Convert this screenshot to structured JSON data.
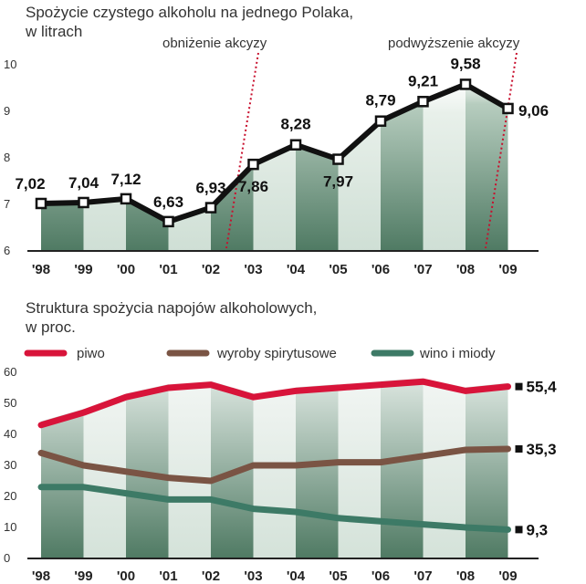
{
  "chart_data": [
    {
      "type": "line",
      "title": "Spożycie czystego alkoholu na jednego Polaka,",
      "subtitle": "w litrach",
      "categories": [
        "'98",
        "'99",
        "'00",
        "'01",
        "'02",
        "'03",
        "'04",
        "'05",
        "'06",
        "'07",
        "'08",
        "'09"
      ],
      "series": [
        {
          "name": "spożycie",
          "values": [
            7.02,
            7.04,
            7.12,
            6.63,
            6.93,
            7.86,
            8.28,
            7.97,
            8.79,
            9.21,
            9.58,
            9.06
          ],
          "labels": [
            "7,02",
            "7,04",
            "7,12",
            "6,63",
            "6,93",
            "7,86",
            "8,28",
            "7,97",
            "8,79",
            "9,21",
            "9,58",
            "9,06"
          ]
        }
      ],
      "yticks": [
        "6",
        "7",
        "8",
        "9",
        "10"
      ],
      "ylim": [
        6,
        10.4
      ],
      "annotations": [
        {
          "label": "obniżenie akcyzy",
          "between": [
            "'02",
            "'03"
          ]
        },
        {
          "label": "podwyższenie akcyzy",
          "between": [
            "'08",
            "'09"
          ]
        }
      ],
      "xlabel": "",
      "ylabel": ""
    },
    {
      "type": "line",
      "title": "Struktura spożycia napojów alkoholowych,",
      "subtitle": "w proc.",
      "categories": [
        "'98",
        "'99",
        "'00",
        "'01",
        "'02",
        "'03",
        "'04",
        "'05",
        "'06",
        "'07",
        "'08",
        "'09"
      ],
      "series": [
        {
          "name": "piwo",
          "color": "#d8143a",
          "values": [
            43,
            47,
            52,
            55,
            56,
            52,
            54,
            55,
            56,
            57,
            54,
            55.4
          ],
          "end_label": "55,4"
        },
        {
          "name": "wyroby spirytusowe",
          "color": "#7a5444",
          "values": [
            34,
            30,
            28,
            26,
            25,
            30,
            30,
            31,
            31,
            33,
            35,
            35.3
          ],
          "end_label": "35,3"
        },
        {
          "name": "wino i miody",
          "color": "#3d7a66",
          "values": [
            23,
            23,
            21,
            19,
            19,
            16,
            15,
            13,
            12,
            11,
            10,
            9.3
          ],
          "end_label": "9,3"
        }
      ],
      "yticks": [
        "0",
        "10",
        "20",
        "30",
        "40",
        "50",
        "60"
      ],
      "ylim": [
        0,
        62
      ],
      "legend": "top",
      "xlabel": "",
      "ylabel": ""
    }
  ],
  "colors": {
    "panel_dark": "#56806a",
    "panel_light": "#d8e6de",
    "annotation_line": "#c8102e",
    "main_line": "#111111"
  }
}
